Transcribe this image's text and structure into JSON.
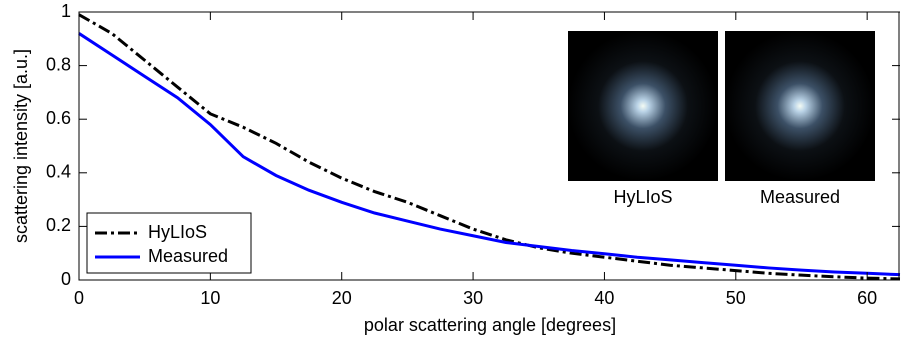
{
  "chart_data": {
    "type": "line",
    "xlabel": "polar scattering angle [degrees]",
    "ylabel": "scattering intensity [a.u.]",
    "x": [
      0,
      2.5,
      5,
      7.5,
      10,
      12.5,
      15,
      17.5,
      20,
      22.5,
      25,
      27.5,
      30,
      32.5,
      35,
      37.5,
      40,
      42.5,
      45,
      47.5,
      50,
      52.5,
      55,
      57.5,
      60,
      62.5
    ],
    "series": [
      {
        "name": "HyLIoS",
        "color": "#000000",
        "style": "dashdot",
        "values": [
          0.99,
          0.92,
          0.82,
          0.72,
          0.62,
          0.57,
          0.51,
          0.44,
          0.38,
          0.33,
          0.29,
          0.24,
          0.19,
          0.15,
          0.12,
          0.1,
          0.085,
          0.07,
          0.055,
          0.045,
          0.035,
          0.025,
          0.018,
          0.012,
          0.007,
          0.004
        ]
      },
      {
        "name": "Measured",
        "color": "#0000ff",
        "style": "solid",
        "values": [
          0.92,
          0.84,
          0.76,
          0.68,
          0.58,
          0.46,
          0.39,
          0.335,
          0.29,
          0.25,
          0.22,
          0.19,
          0.165,
          0.14,
          0.125,
          0.11,
          0.098,
          0.085,
          0.075,
          0.065,
          0.055,
          0.045,
          0.037,
          0.03,
          0.025,
          0.02
        ]
      }
    ],
    "xlim": [
      0,
      62.5
    ],
    "xticks": [
      0,
      10,
      20,
      30,
      40,
      50,
      60
    ],
    "ylim": [
      0,
      1
    ],
    "yticks": [
      0,
      0.2,
      0.4,
      0.6,
      0.8,
      1
    ],
    "legend": "lower left",
    "annotations": [
      "HyLIoS",
      "Measured"
    ]
  }
}
